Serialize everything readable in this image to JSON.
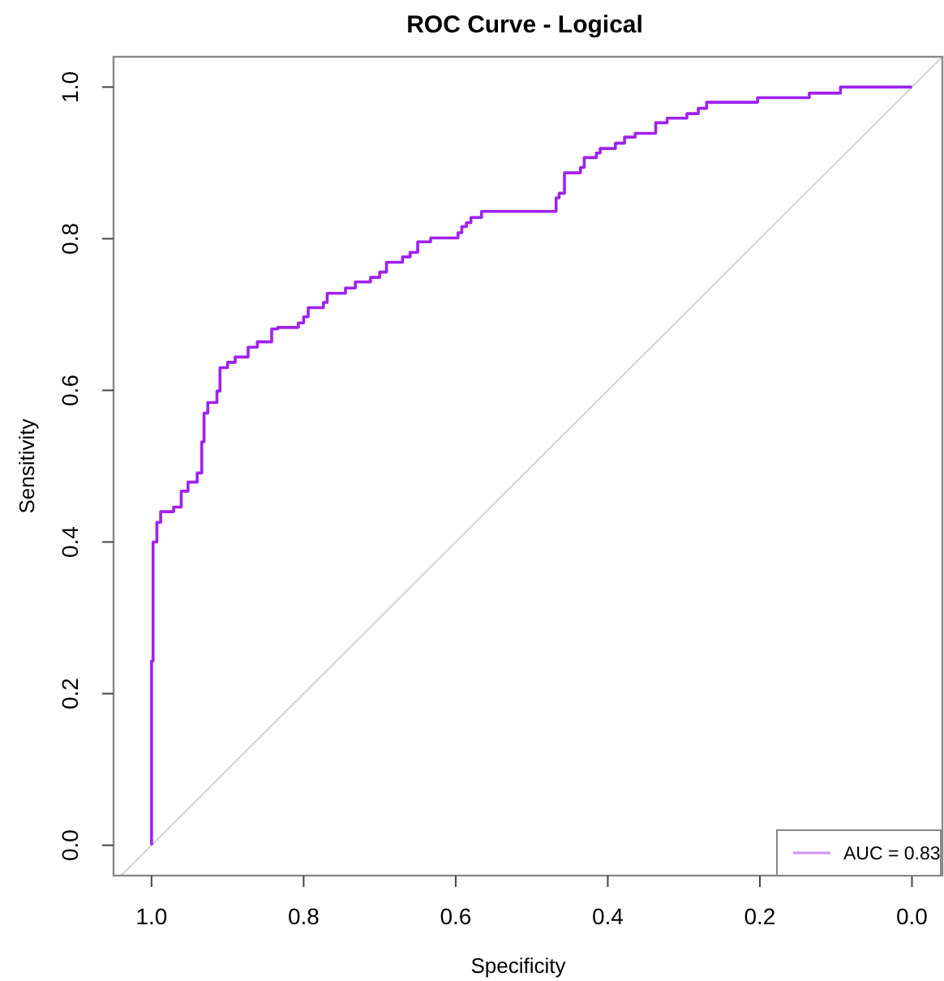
{
  "chart_data": {
    "type": "step",
    "title": "ROC Curve - Logical",
    "xlabel": "Specificity",
    "ylabel": "Sensitivity",
    "xlim": [
      1.05,
      -0.04
    ],
    "ylim": [
      -0.04,
      1.04
    ],
    "xticks": [
      {
        "value": 1,
        "label": "1.0"
      },
      {
        "value": 0.8,
        "label": "0.8"
      },
      {
        "value": 0.6,
        "label": "0.6"
      },
      {
        "value": 0.4,
        "label": "0.4"
      },
      {
        "value": 0.2,
        "label": "0.2"
      },
      {
        "value": 0,
        "label": "0.0"
      }
    ],
    "yticks": [
      {
        "value": 0,
        "label": "0.0"
      },
      {
        "value": 0.2,
        "label": "0.2"
      },
      {
        "value": 0.4,
        "label": "0.4"
      },
      {
        "value": 0.6,
        "label": "0.6"
      },
      {
        "value": 0.8,
        "label": "0.8"
      },
      {
        "value": 1,
        "label": "1.0"
      }
    ],
    "legend": "bottom right",
    "grid": false,
    "series": [
      {
        "type": "line",
        "color": "#d3d3d3",
        "x": [
          1.04,
          -0.04
        ],
        "values": [
          -0.04,
          1.04
        ]
      },
      {
        "name": "AUC = 0.83",
        "color": "#a020f0",
        "x": [
          1.0,
          1.0,
          0.998,
          0.993,
          0.988,
          0.971,
          0.961,
          0.952,
          0.94,
          0.934,
          0.931,
          0.926,
          0.914,
          0.91,
          0.9,
          0.89,
          0.873,
          0.861,
          0.842,
          0.834,
          0.807,
          0.8,
          0.794,
          0.774,
          0.769,
          0.745,
          0.732,
          0.712,
          0.7,
          0.691,
          0.67,
          0.66,
          0.65,
          0.633,
          0.597,
          0.592,
          0.586,
          0.58,
          0.566,
          0.468,
          0.464,
          0.457,
          0.436,
          0.431,
          0.415,
          0.41,
          0.39,
          0.378,
          0.364,
          0.337,
          0.322,
          0.296,
          0.281,
          0.27,
          0.203,
          0.135,
          0.094,
          0.0
        ],
        "values": [
          0.0,
          0.243,
          0.4,
          0.426,
          0.44,
          0.446,
          0.467,
          0.479,
          0.491,
          0.532,
          0.57,
          0.584,
          0.599,
          0.63,
          0.637,
          0.644,
          0.657,
          0.664,
          0.681,
          0.683,
          0.689,
          0.697,
          0.709,
          0.716,
          0.728,
          0.735,
          0.743,
          0.749,
          0.756,
          0.769,
          0.776,
          0.782,
          0.796,
          0.801,
          0.808,
          0.816,
          0.821,
          0.828,
          0.836,
          0.854,
          0.86,
          0.887,
          0.894,
          0.907,
          0.913,
          0.919,
          0.926,
          0.934,
          0.939,
          0.953,
          0.959,
          0.965,
          0.972,
          0.98,
          0.986,
          0.992,
          1.0,
          1.0
        ]
      }
    ]
  }
}
